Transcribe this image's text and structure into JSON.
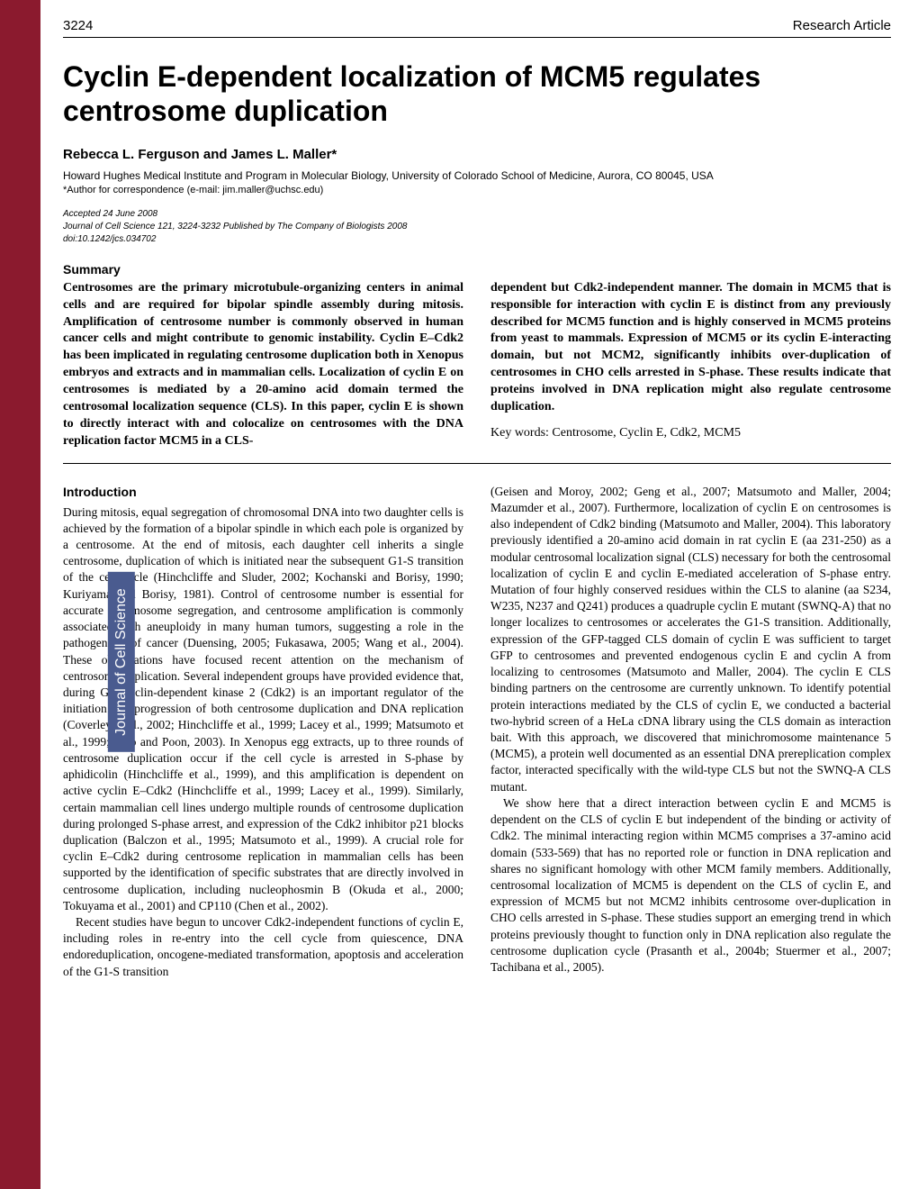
{
  "header": {
    "page_number": "3224",
    "article_type": "Research Article"
  },
  "title": "Cyclin E-dependent localization of MCM5 regulates centrosome duplication",
  "authors": "Rebecca L. Ferguson and James L. Maller*",
  "affiliation": "Howard Hughes Medical Institute and Program in Molecular Biology, University of Colorado School of Medicine, Aurora, CO 80045, USA",
  "correspondence": "*Author for correspondence (e-mail: jim.maller@uchsc.edu)",
  "pub": {
    "accepted": "Accepted 24 June 2008",
    "citation": "Journal of Cell Science 121, 3224-3232 Published by The Company of Biologists 2008",
    "doi": "doi:10.1242/jcs.034702"
  },
  "side_label": "Journal of Cell Science",
  "summary": {
    "heading": "Summary",
    "left": "Centrosomes are the primary microtubule-organizing centers in animal cells and are required for bipolar spindle assembly during mitosis. Amplification of centrosome number is commonly observed in human cancer cells and might contribute to genomic instability. Cyclin E–Cdk2 has been implicated in regulating centrosome duplication both in Xenopus embryos and extracts and in mammalian cells. Localization of cyclin E on centrosomes is mediated by a 20-amino acid domain termed the centrosomal localization sequence (CLS). In this paper, cyclin E is shown to directly interact with and colocalize on centrosomes with the DNA replication factor MCM5 in a CLS-",
    "right": "dependent but Cdk2-independent manner. The domain in MCM5 that is responsible for interaction with cyclin E is distinct from any previously described for MCM5 function and is highly conserved in MCM5 proteins from yeast to mammals. Expression of MCM5 or its cyclin E-interacting domain, but not MCM2, significantly inhibits over-duplication of centrosomes in CHO cells arrested in S-phase. These results indicate that proteins involved in DNA replication might also regulate centrosome duplication.",
    "keywords": "Key words: Centrosome, Cyclin E, Cdk2, MCM5"
  },
  "intro": {
    "heading": "Introduction",
    "left_p1": "During mitosis, equal segregation of chromosomal DNA into two daughter cells is achieved by the formation of a bipolar spindle in which each pole is organized by a centrosome. At the end of mitosis, each daughter cell inherits a single centrosome, duplication of which is initiated near the subsequent G1-S transition of the cell cycle (Hinchcliffe and Sluder, 2002; Kochanski and Borisy, 1990; Kuriyama and Borisy, 1981). Control of centrosome number is essential for accurate chromosome segregation, and centrosome amplification is commonly associated with aneuploidy in many human tumors, suggesting a role in the pathogenesis of cancer (Duensing, 2005; Fukasawa, 2005; Wang et al., 2004). These observations have focused recent attention on the mechanism of centrosome duplication. Several independent groups have provided evidence that, during G1, cyclin-dependent kinase 2 (Cdk2) is an important regulator of the initiation and progression of both centrosome duplication and DNA replication (Coverley et al., 2002; Hinchcliffe et al., 1999; Lacey et al., 1999; Matsumoto et al., 1999; Woo and Poon, 2003). In Xenopus egg extracts, up to three rounds of centrosome duplication occur if the cell cycle is arrested in S-phase by aphidicolin (Hinchcliffe et al., 1999), and this amplification is dependent on active cyclin E–Cdk2 (Hinchcliffe et al., 1999; Lacey et al., 1999). Similarly, certain mammalian cell lines undergo multiple rounds of centrosome duplication during prolonged S-phase arrest, and expression of the Cdk2 inhibitor p21 blocks duplication (Balczon et al., 1995; Matsumoto et al., 1999). A crucial role for cyclin E–Cdk2 during centrosome replication in mammalian cells has been supported by the identification of specific substrates that are directly involved in centrosome duplication, including nucleophosmin B (Okuda et al., 2000; Tokuyama et al., 2001) and CP110 (Chen et al., 2002).",
    "left_p2": "Recent studies have begun to uncover Cdk2-independent functions of cyclin E, including roles in re-entry into the cell cycle from quiescence, DNA endoreduplication, oncogene-mediated transformation, apoptosis and acceleration of the G1-S transition",
    "right_p1": "(Geisen and Moroy, 2002; Geng et al., 2007; Matsumoto and Maller, 2004; Mazumder et al., 2007). Furthermore, localization of cyclin E on centrosomes is also independent of Cdk2 binding (Matsumoto and Maller, 2004). This laboratory previously identified a 20-amino acid domain in rat cyclin E (aa 231-250) as a modular centrosomal localization signal (CLS) necessary for both the centrosomal localization of cyclin E and cyclin E-mediated acceleration of S-phase entry. Mutation of four highly conserved residues within the CLS to alanine (aa S234, W235, N237 and Q241) produces a quadruple cyclin E mutant (SWNQ-A) that no longer localizes to centrosomes or accelerates the G1-S transition. Additionally, expression of the GFP-tagged CLS domain of cyclin E was sufficient to target GFP to centrosomes and prevented endogenous cyclin E and cyclin A from localizing to centrosomes (Matsumoto and Maller, 2004). The cyclin E CLS binding partners on the centrosome are currently unknown. To identify potential protein interactions mediated by the CLS of cyclin E, we conducted a bacterial two-hybrid screen of a HeLa cDNA library using the CLS domain as interaction bait. With this approach, we discovered that minichromosome maintenance 5 (MCM5), a protein well documented as an essential DNA prereplication complex factor, interacted specifically with the wild-type CLS but not the SWNQ-A CLS mutant.",
    "right_p2": "We show here that a direct interaction between cyclin E and MCM5 is dependent on the CLS of cyclin E but independent of the binding or activity of Cdk2. The minimal interacting region within MCM5 comprises a 37-amino acid domain (533-569) that has no reported role or function in DNA replication and shares no significant homology with other MCM family members. Additionally, centrosomal localization of MCM5 is dependent on the CLS of cyclin E, and expression of MCM5 but not MCM2 inhibits centrosome over-duplication in CHO cells arrested in S-phase. These studies support an emerging trend in which proteins previously thought to function only in DNA replication also regulate the centrosome duplication cycle (Prasanth et al., 2004b; Stuermer et al., 2007; Tachibana et al., 2005)."
  },
  "colors": {
    "left_bar": "#8b1a2e",
    "side_label_bg": "#4a5b8f",
    "side_label_text": "#ffffff",
    "text": "#000000",
    "background": "#ffffff"
  }
}
